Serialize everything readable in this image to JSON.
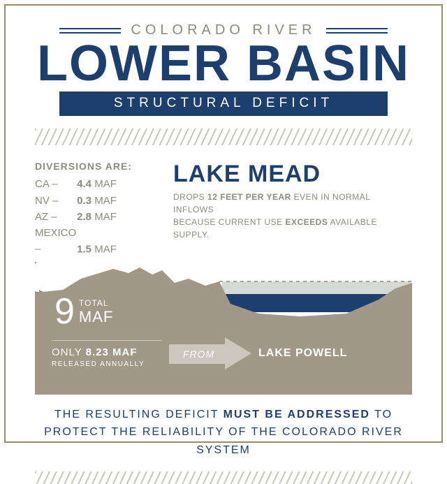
{
  "colors": {
    "navy": "#1d3f6e",
    "gray_text": "#8e8a80",
    "taupe": "#a29887",
    "water": "#1d3f6e",
    "water_light": "#d7d9d7",
    "hatch": "#c9c5bd"
  },
  "title": {
    "eyebrow": "COLORADO RIVER",
    "headline": "LOWER BASIN",
    "subhead": "STRUCTURAL DEFICIT"
  },
  "diversions": {
    "title": "DIVERSIONS ARE:",
    "rows": [
      {
        "state": "CA",
        "value": "4.4",
        "unit": "MAF"
      },
      {
        "state": "NV",
        "value": "0.3",
        "unit": "MAF"
      },
      {
        "state": "AZ",
        "value": "2.8",
        "unit": "MAF"
      },
      {
        "state": "MEXICO",
        "value": "1.5",
        "unit": "MAF"
      }
    ]
  },
  "lake_mead": {
    "title": "LAKE MEAD",
    "line1_pre": "DROPS ",
    "line1_bold": "12 FEET PER YEAR",
    "line1_post": " EVEN IN NORMAL INFLOWS",
    "line2_pre": "BECAUSE CURRENT USE ",
    "line2_bold": "EXCEEDS",
    "line2_post": " AVAILABLE SUPPLY."
  },
  "terrain": {
    "total_value": "9",
    "total_label_top": "TOTAL",
    "total_label_bottom": "MAF",
    "only_pre": "ONLY ",
    "only_bold": "8.23 MAF",
    "only_sub": "RELEASED ANNUALLY",
    "from_label": "FROM",
    "powell": "LAKE POWELL"
  },
  "conclusion": {
    "pre": "THE RESULTING DEFICIT ",
    "bold": "MUST BE ADDRESSED",
    "post": " TO",
    "line2": "PROTECT THE RELIABILITY OF THE COLORADO RIVER SYSTEM"
  }
}
